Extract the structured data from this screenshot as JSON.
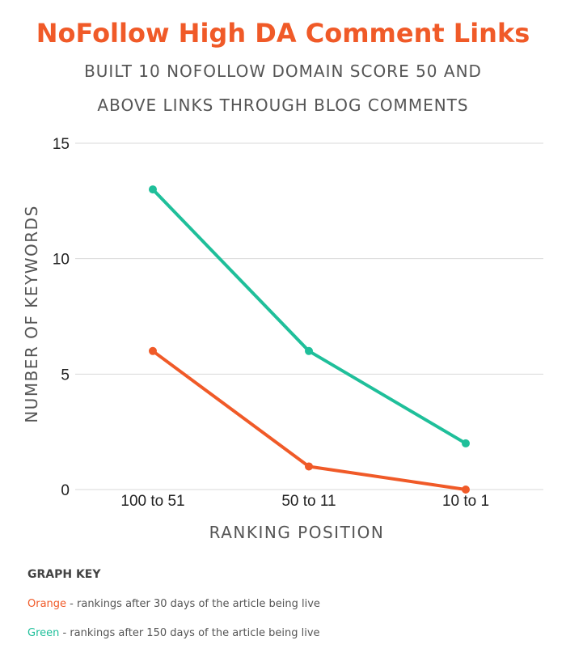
{
  "header": {
    "title": "NoFollow High DA Comment Links",
    "subtitle_line1": "BUILT 10 NOFOLLOW DOMAIN SCORE 50 AND",
    "subtitle_line2": "ABOVE LINKS THROUGH BLOG COMMENTS"
  },
  "chart_data": {
    "type": "line",
    "categories": [
      "100 to 51",
      "50 to 11",
      "10 to 1"
    ],
    "series": [
      {
        "key": "orange",
        "color": "#f05a28",
        "values": [
          6,
          1,
          0
        ]
      },
      {
        "key": "green",
        "color": "#1fbf9a",
        "values": [
          13,
          6,
          2
        ]
      }
    ],
    "ylabel": "NUMBER OF KEYWORDS",
    "xlabel": "RANKING POSITION",
    "ylim": [
      0,
      15
    ],
    "yticks": [
      0,
      5,
      10,
      15
    ],
    "grid": true
  },
  "graph_key": {
    "heading": "GRAPH KEY",
    "items": [
      {
        "label": "Orange",
        "text": " - rankings after 30 days of the article being live",
        "color": "#f05a28"
      },
      {
        "label": "Green",
        "text": " - rankings after 150 days of the article being live",
        "color": "#1fbf9a"
      }
    ]
  }
}
